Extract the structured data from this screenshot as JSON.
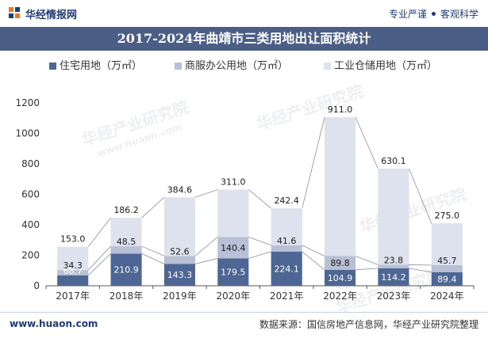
{
  "header": {
    "brand": "华经情报网",
    "tag1": "专业严谨",
    "tag2": "客观科学"
  },
  "title": "2017-2024年曲靖市三类用地出让面积统计",
  "legend": [
    {
      "label": "住宅用地（万㎡）",
      "color": "#4e6694"
    },
    {
      "label": "商服办公用地（万㎡）",
      "color": "#b7c0d4"
    },
    {
      "label": "工业仓储用地（万㎡）",
      "color": "#dde2ee"
    }
  ],
  "watermarks": [
    "华经产业研究院",
    "www.huaon.com",
    "华经产业研究院",
    "华经产业研究院",
    "华经产业研究院"
  ],
  "footer": {
    "url": "www.huaon.com",
    "source": "数据来源：国信房地产信息网，华经产业研究院整理"
  },
  "chart_data": {
    "type": "bar",
    "stacked": true,
    "categories": [
      "2017年",
      "2018年",
      "2019年",
      "2020年",
      "2021年",
      "2022年",
      "2023年",
      "2024年"
    ],
    "series": [
      {
        "name": "住宅用地（万㎡）",
        "values": [
          68.7,
          210.9,
          143.3,
          179.5,
          224.1,
          104.9,
          114.2,
          89.4
        ],
        "color": "#4e6694",
        "label_color": "#ffffff"
      },
      {
        "name": "商服办公用地（万㎡）",
        "values": [
          34.3,
          48.5,
          52.6,
          140.4,
          41.6,
          89.8,
          23.8,
          45.7
        ],
        "color": "#b7c0d4",
        "label_color": "#1a1a1a"
      },
      {
        "name": "工业仓储用地（万㎡）",
        "values": [
          153.0,
          186.2,
          384.6,
          311.0,
          242.4,
          911.0,
          630.1,
          275.0
        ],
        "color": "#dde2ee",
        "label_color": "#1a1a1a"
      }
    ],
    "yticks": [
      0,
      200,
      400,
      600,
      800,
      1000,
      1200
    ],
    "ylim": [
      0,
      1200
    ],
    "grid": false,
    "legend_position": "top",
    "trend_lines": true
  }
}
